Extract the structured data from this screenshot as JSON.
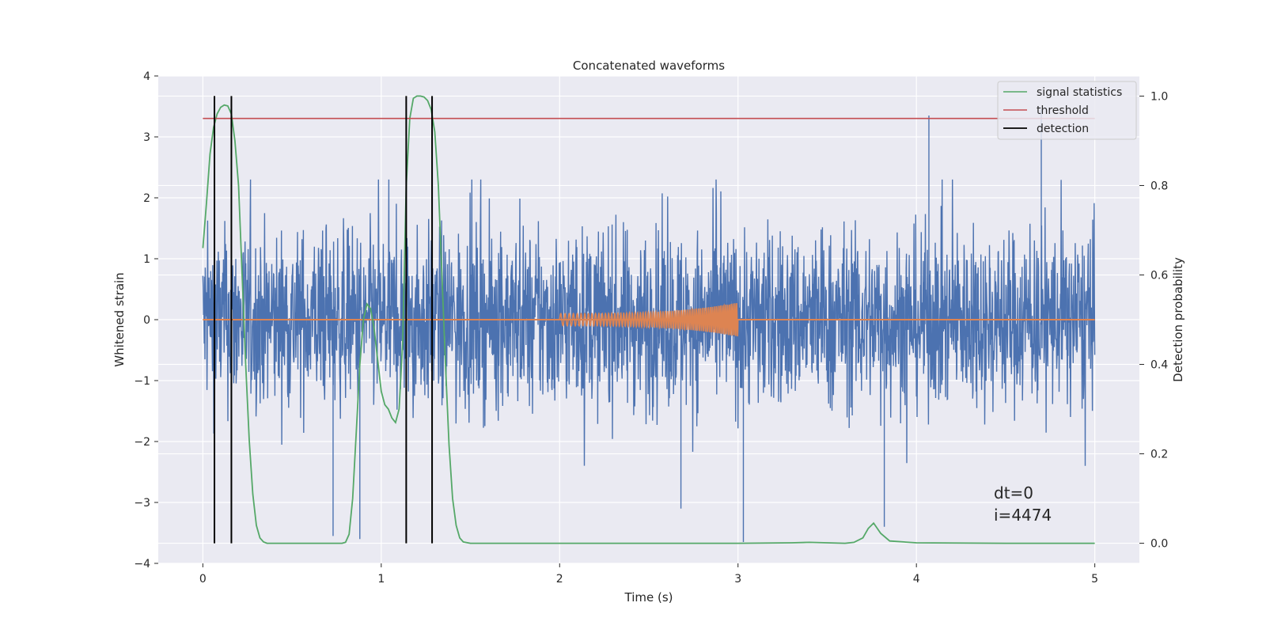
{
  "chart_data": {
    "type": "line",
    "title": "Concatenated waveforms",
    "xlabel": "Time (s)",
    "ylabel": "Whitened strain",
    "y2label": "Detection probability",
    "xlim": [
      -0.25,
      5.25
    ],
    "ylim": [
      -4,
      4
    ],
    "y2lim": [
      -0.045,
      1.045
    ],
    "xticks": [
      0,
      1,
      2,
      3,
      4,
      5
    ],
    "yticks": [
      -4,
      -3,
      -2,
      -1,
      0,
      1,
      2,
      3,
      4
    ],
    "y2ticks": [
      0.0,
      0.2,
      0.4,
      0.6,
      0.8,
      1.0
    ],
    "xtick_labels": [
      "0",
      "1",
      "2",
      "3",
      "4",
      "5"
    ],
    "ytick_labels": [
      "−4",
      "−3",
      "−2",
      "−1",
      "0",
      "1",
      "2",
      "3",
      "4"
    ],
    "y2tick_labels": [
      "0.0",
      "0.2",
      "0.4",
      "0.6",
      "0.8",
      "1.0"
    ],
    "grid": true,
    "legend_position": "top-right",
    "background": "#eaeaf2",
    "strain_noise": {
      "color": "#4c72b0",
      "x_range": [
        0,
        5
      ],
      "typical_range": [
        -2.4,
        2.3
      ],
      "extreme_peaks": [
        {
          "x": 0.73,
          "y": -3.55
        },
        {
          "x": 0.88,
          "y": -3.6
        },
        {
          "x": 3.03,
          "y": -3.65
        },
        {
          "x": 3.82,
          "y": -3.4
        },
        {
          "x": 4.07,
          "y": 3.35
        },
        {
          "x": 4.7,
          "y": 3.45
        },
        {
          "x": 2.68,
          "y": -3.1
        }
      ]
    },
    "chirp_template": {
      "color": "#dd8452",
      "x_range": [
        2.0,
        3.0
      ],
      "amplitude_start": 0.1,
      "amplitude_end": 0.28,
      "baseline": 0
    },
    "series": [
      {
        "name": "signal statistics",
        "color": "#55a868",
        "axis": "right",
        "x": [
          0.0,
          0.02,
          0.04,
          0.06,
          0.08,
          0.1,
          0.12,
          0.14,
          0.16,
          0.18,
          0.2,
          0.22,
          0.24,
          0.26,
          0.28,
          0.3,
          0.32,
          0.34,
          0.36,
          0.4,
          0.5,
          0.6,
          0.7,
          0.78,
          0.8,
          0.82,
          0.84,
          0.86,
          0.88,
          0.9,
          0.92,
          0.94,
          0.96,
          0.98,
          1.0,
          1.02,
          1.04,
          1.06,
          1.08,
          1.1,
          1.12,
          1.14,
          1.16,
          1.18,
          1.2,
          1.22,
          1.24,
          1.26,
          1.28,
          1.3,
          1.32,
          1.34,
          1.36,
          1.38,
          1.4,
          1.42,
          1.44,
          1.46,
          1.5,
          2.0,
          2.5,
          3.0,
          3.3,
          3.4,
          3.5,
          3.6,
          3.65,
          3.7,
          3.73,
          3.76,
          3.8,
          3.85,
          4.0,
          4.5,
          5.0
        ],
        "y": [
          0.66,
          0.76,
          0.87,
          0.93,
          0.96,
          0.975,
          0.98,
          0.978,
          0.96,
          0.9,
          0.8,
          0.6,
          0.4,
          0.23,
          0.11,
          0.04,
          0.012,
          0.003,
          0.0,
          0.0,
          0.0,
          0.0,
          0.0,
          0.0,
          0.002,
          0.02,
          0.1,
          0.25,
          0.4,
          0.5,
          0.535,
          0.525,
          0.48,
          0.41,
          0.34,
          0.31,
          0.3,
          0.28,
          0.27,
          0.3,
          0.45,
          0.8,
          0.95,
          0.995,
          1.0,
          1.0,
          0.998,
          0.99,
          0.97,
          0.92,
          0.8,
          0.6,
          0.4,
          0.22,
          0.1,
          0.04,
          0.012,
          0.003,
          0.0,
          0.0,
          0.0,
          0.0,
          0.001,
          0.002,
          0.001,
          0.0,
          0.002,
          0.012,
          0.033,
          0.045,
          0.022,
          0.005,
          0.001,
          0.0,
          0.0
        ]
      },
      {
        "name": "threshold",
        "color": "#c44e52",
        "axis": "right",
        "x": [
          0,
          5
        ],
        "y": [
          0.95,
          0.95
        ]
      },
      {
        "name": "detection",
        "color": "#000000",
        "axis": "right",
        "type": "vlines",
        "x": [
          0.065,
          0.16,
          1.14,
          1.285
        ],
        "ymin": 0.0,
        "ymax": 1.0
      }
    ],
    "annotations": [
      "dt=0",
      "i=4474"
    ]
  }
}
